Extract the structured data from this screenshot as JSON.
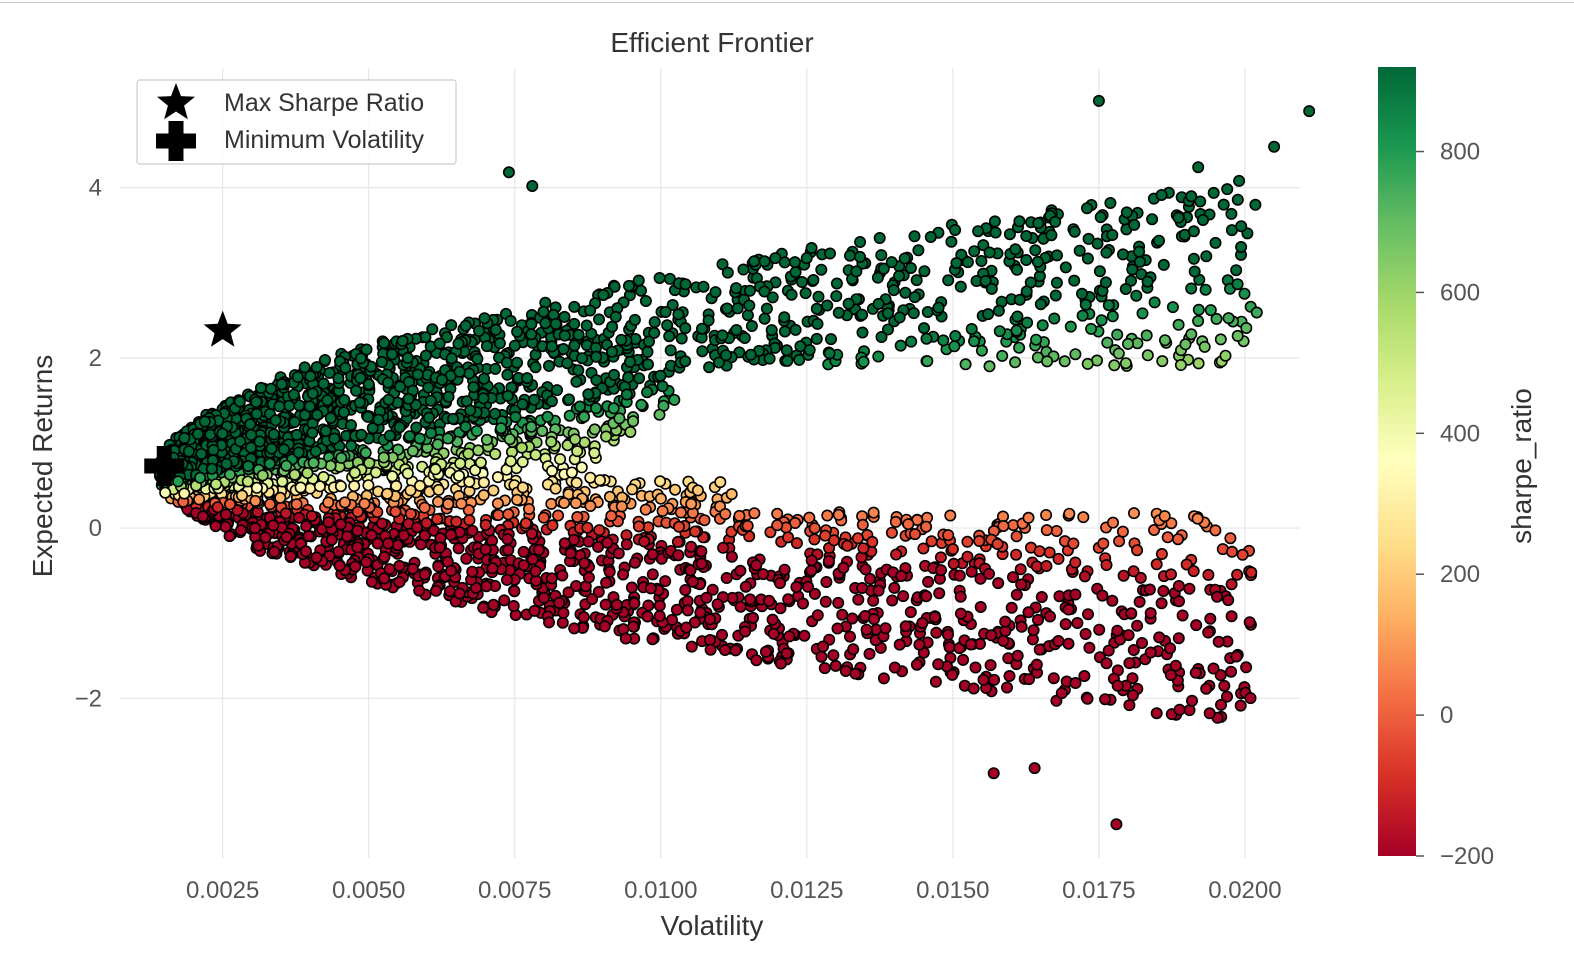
{
  "chart_data": {
    "type": "scatter",
    "title": "Efficient Frontier",
    "xlabel": "Volatility",
    "ylabel": "Expected Returns",
    "xlim": [
      0.0004,
      0.0212
    ],
    "ylim": [
      -3.9,
      5.5
    ],
    "xticks": [
      0.0025,
      0.005,
      0.0075,
      0.01,
      0.0125,
      0.015,
      0.0175,
      0.02
    ],
    "xtick_labels": [
      "0.0025",
      "0.0050",
      "0.0075",
      "0.0100",
      "0.0125",
      "0.0150",
      "0.0175",
      "0.0200"
    ],
    "yticks": [
      -2,
      0,
      2,
      4
    ],
    "ytick_labels": [
      "−2",
      "0",
      "2",
      "4"
    ],
    "grid": true,
    "colormap": "RdYlGn",
    "colormap_colors": [
      "#a50026",
      "#d73027",
      "#f46d43",
      "#fdae61",
      "#fee08b",
      "#ffffbf",
      "#d9ef8b",
      "#a6d96a",
      "#66bd63",
      "#1a9850",
      "#006837"
    ],
    "colorbar": {
      "label": "sharpe_ratio",
      "range": [
        -200,
        920
      ],
      "ticks": [
        -200,
        0,
        200,
        400,
        600,
        800
      ],
      "tick_labels": [
        "−200",
        "0",
        "200",
        "400",
        "600",
        "800"
      ]
    },
    "marker_edge_color": "#000000",
    "legend": {
      "placement": "top-left",
      "entries": [
        {
          "label": "Max Sharpe Ratio",
          "marker": "star-icon"
        },
        {
          "label": "Minimum Volatility",
          "marker": "plus-icon"
        }
      ]
    },
    "special_points": [
      {
        "name": "Max Sharpe Ratio",
        "x": 0.0025,
        "y": 2.32,
        "marker": "star"
      },
      {
        "name": "Minimum Volatility",
        "x": 0.0015,
        "y": 0.73,
        "marker": "plus"
      }
    ],
    "series": [
      {
        "kind": "simulated portfolios",
        "count": 3800,
        "x_range": [
          0.0015,
          0.0211
        ],
        "y_range": [
          -3.5,
          5.0
        ],
        "color_by": "sharpe_ratio",
        "outliers": [
          {
            "x": 0.0211,
            "y": 4.9
          },
          {
            "x": 0.0175,
            "y": 5.02
          },
          {
            "x": 0.0205,
            "y": 4.48
          },
          {
            "x": 0.0199,
            "y": 4.08
          },
          {
            "x": 0.0192,
            "y": 4.24
          },
          {
            "x": 0.0178,
            "y": -3.48
          },
          {
            "x": 0.0171,
            "y": -1.82
          },
          {
            "x": 0.0164,
            "y": -2.82
          },
          {
            "x": 0.0157,
            "y": -2.88
          },
          {
            "x": 0.0074,
            "y": 4.18
          },
          {
            "x": 0.0078,
            "y": 4.02
          },
          {
            "x": 0.0152,
            "y": -1.32
          }
        ]
      }
    ]
  }
}
